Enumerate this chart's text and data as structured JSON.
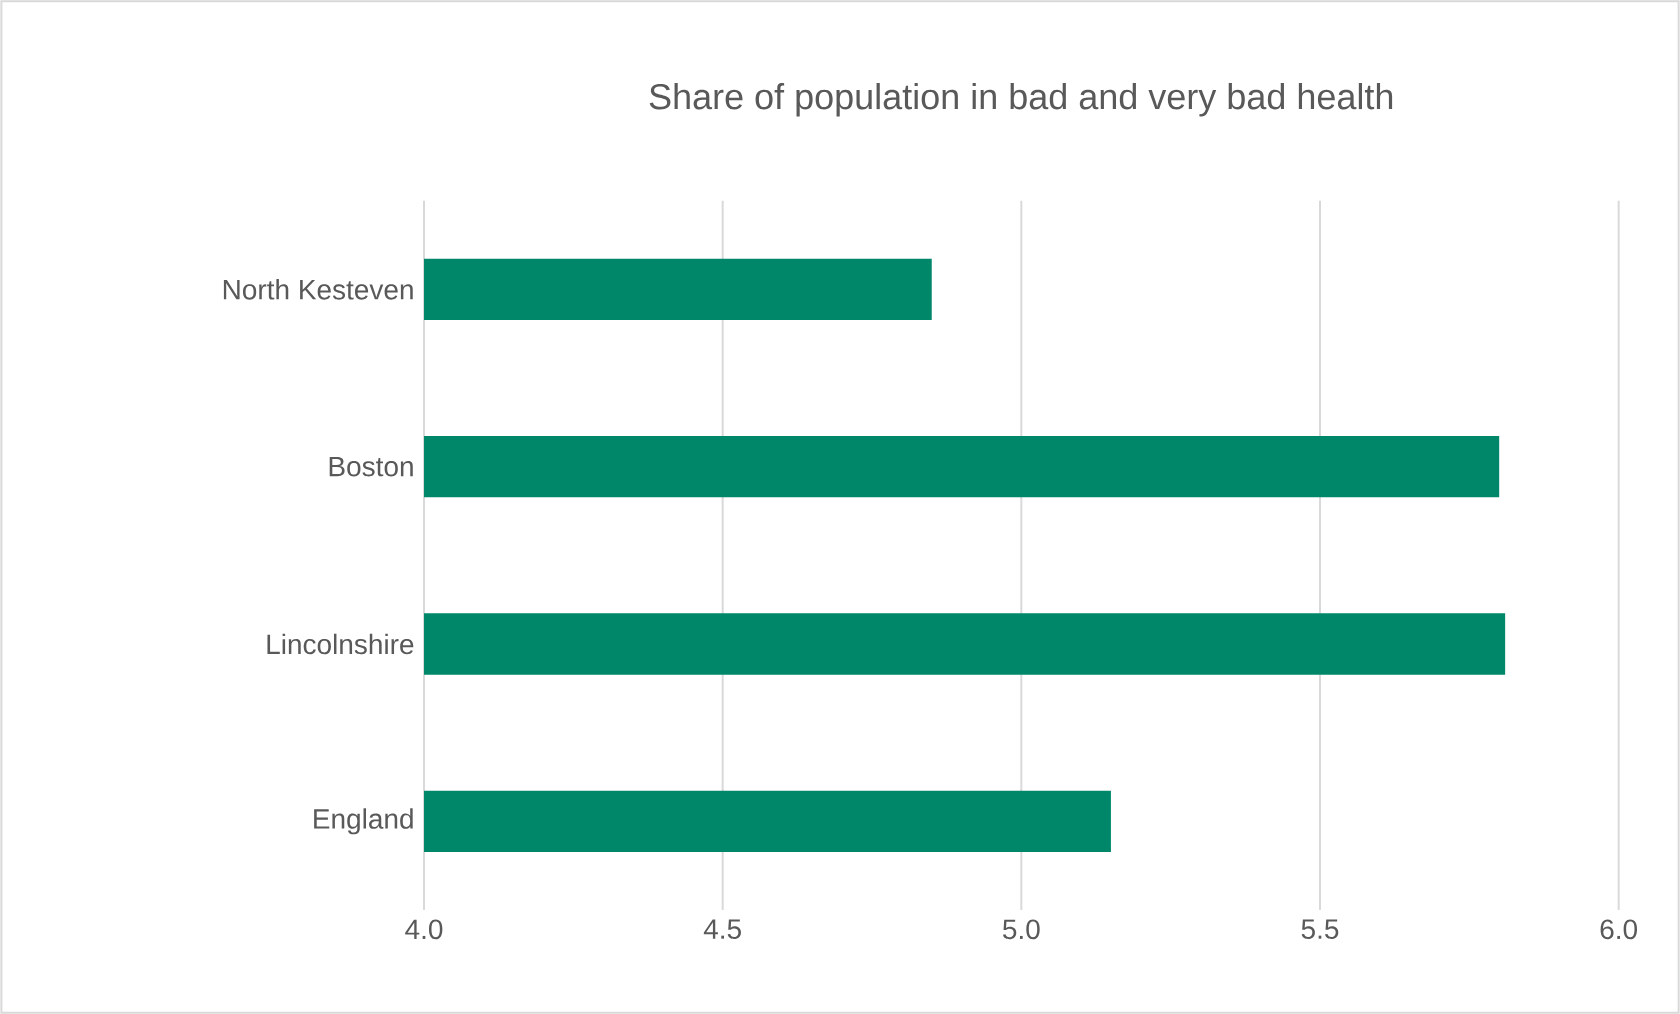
{
  "chart_data": {
    "type": "bar",
    "orientation": "horizontal",
    "title": "Share of population in bad and very bad health",
    "categories": [
      "North Kesteven",
      "Boston",
      "Lincolnshire",
      "England"
    ],
    "values": [
      4.85,
      5.8,
      5.81,
      5.15
    ],
    "color": "#00876a",
    "xlim": [
      4.0,
      6.0
    ],
    "xticks": [
      {
        "value": 4.0,
        "label": "4.0"
      },
      {
        "value": 4.5,
        "label": "4.5"
      },
      {
        "value": 5.0,
        "label": "5.0"
      },
      {
        "value": 5.5,
        "label": "5.5"
      },
      {
        "value": 6.0,
        "label": "6.0"
      }
    ],
    "grid": "x"
  }
}
